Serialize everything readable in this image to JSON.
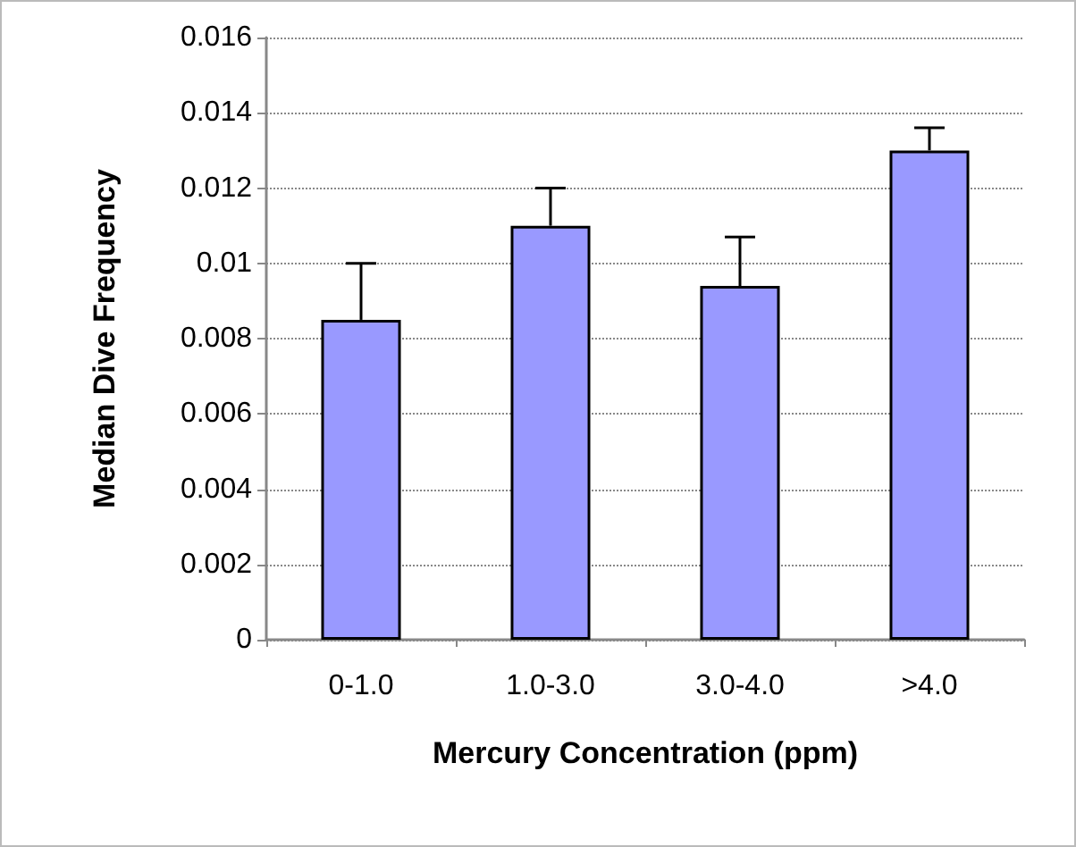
{
  "chart_data": {
    "type": "bar",
    "xlabel": "Mercury Concentration (ppm)",
    "ylabel": "Median Dive Frequency",
    "categories": [
      "0-1.0",
      "1.0-3.0",
      "3.0-4.0",
      ">4.0"
    ],
    "values": [
      0.0085,
      0.011,
      0.0094,
      0.013
    ],
    "errors": [
      [
        0.0085,
        0.01
      ],
      [
        0.011,
        0.012
      ],
      [
        0.0094,
        0.0107
      ],
      [
        0.013,
        0.0136
      ]
    ],
    "color": "#9999ff",
    "ylim": [
      0,
      0.016
    ],
    "yticks": [
      0,
      0.002,
      0.004,
      0.006,
      0.008,
      0.01,
      0.012,
      0.014,
      0.016
    ],
    "grid": "y"
  }
}
